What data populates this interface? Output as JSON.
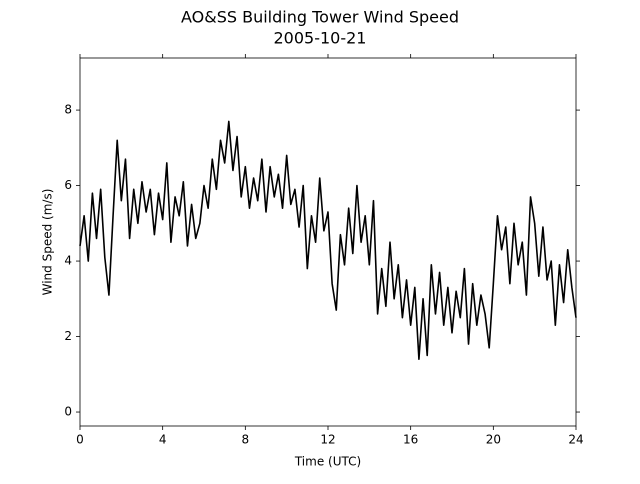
{
  "chart_data": {
    "type": "line",
    "title": "AO&SS Building Tower Wind Speed",
    "subtitle": "2005-10-21",
    "xlabel": "Time (UTC)",
    "ylabel": "Wind Speed (m/s)",
    "xlim": [
      0,
      24
    ],
    "xticks": [
      0,
      4,
      8,
      12,
      16,
      20,
      24
    ],
    "ylim": [
      -0.37,
      9.38
    ],
    "yticks": [
      0,
      2,
      4,
      6,
      8
    ],
    "grid": false,
    "x": [
      0.0,
      0.2,
      0.4,
      0.6,
      0.8,
      1.0,
      1.2,
      1.4,
      1.6,
      1.8,
      2.0,
      2.2,
      2.4,
      2.6,
      2.8,
      3.0,
      3.2,
      3.4,
      3.6,
      3.8,
      4.0,
      4.2,
      4.4,
      4.6,
      4.8,
      5.0,
      5.2,
      5.4,
      5.6,
      5.8,
      6.0,
      6.2,
      6.4,
      6.6,
      6.8,
      7.0,
      7.2,
      7.4,
      7.6,
      7.8,
      8.0,
      8.2,
      8.4,
      8.6,
      8.8,
      9.0,
      9.2,
      9.4,
      9.6,
      9.8,
      10.0,
      10.2,
      10.4,
      10.6,
      10.8,
      11.0,
      11.2,
      11.4,
      11.6,
      11.8,
      12.0,
      12.2,
      12.4,
      12.6,
      12.8,
      13.0,
      13.2,
      13.4,
      13.6,
      13.8,
      14.0,
      14.2,
      14.4,
      14.6,
      14.8,
      15.0,
      15.2,
      15.4,
      15.6,
      15.8,
      16.0,
      16.2,
      16.4,
      16.6,
      16.8,
      17.0,
      17.2,
      17.4,
      17.6,
      17.8,
      18.0,
      18.2,
      18.4,
      18.6,
      18.8,
      19.0,
      19.2,
      19.4,
      19.6,
      19.8,
      20.0,
      20.2,
      20.4,
      20.6,
      20.8,
      21.0,
      21.2,
      21.4,
      21.6,
      21.8,
      22.0,
      22.2,
      22.4,
      22.6,
      22.8,
      23.0,
      23.2,
      23.4,
      23.6,
      23.8,
      24.0
    ],
    "series": [
      {
        "color": "#000000",
        "values": [
          4.4,
          5.2,
          4.0,
          5.8,
          4.6,
          5.9,
          4.1,
          3.1,
          5.2,
          7.2,
          5.6,
          6.7,
          4.6,
          5.9,
          5.0,
          6.1,
          5.3,
          5.9,
          4.7,
          5.8,
          5.1,
          6.6,
          4.5,
          5.7,
          5.2,
          6.1,
          4.4,
          5.5,
          4.6,
          5.0,
          6.0,
          5.4,
          6.7,
          5.9,
          7.2,
          6.6,
          7.7,
          6.4,
          7.3,
          5.7,
          6.5,
          5.4,
          6.2,
          5.6,
          6.7,
          5.3,
          6.5,
          5.7,
          6.3,
          5.4,
          6.8,
          5.5,
          5.9,
          4.9,
          6.0,
          3.8,
          5.2,
          4.5,
          6.2,
          4.8,
          5.3,
          3.4,
          2.7,
          4.7,
          3.9,
          5.4,
          4.2,
          6.0,
          4.5,
          5.2,
          3.9,
          5.6,
          2.6,
          3.8,
          2.8,
          4.5,
          3.0,
          3.9,
          2.5,
          3.5,
          2.3,
          3.3,
          1.4,
          3.0,
          1.5,
          3.9,
          2.6,
          3.7,
          2.3,
          3.3,
          2.1,
          3.2,
          2.5,
          3.8,
          1.8,
          3.4,
          2.3,
          3.1,
          2.6,
          1.7,
          3.4,
          5.2,
          4.3,
          4.9,
          3.4,
          5.0,
          3.9,
          4.5,
          3.1,
          5.7,
          5.0,
          3.6,
          4.9,
          3.5,
          4.0,
          2.3,
          3.9,
          2.9,
          4.3,
          3.3,
          2.5
        ]
      }
    ]
  }
}
